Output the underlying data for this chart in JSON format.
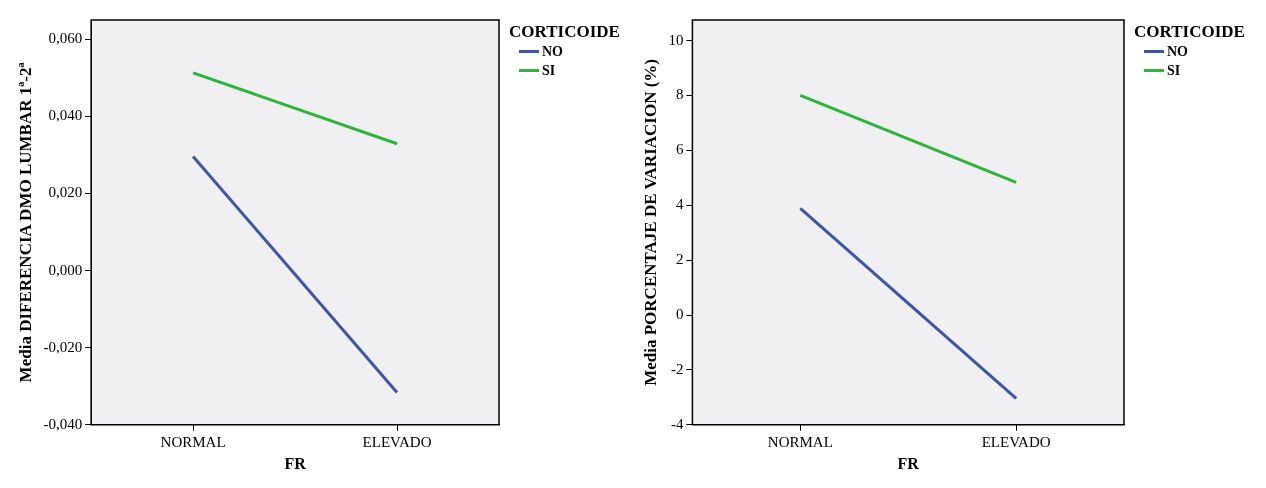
{
  "chart_data": [
    {
      "type": "line",
      "categories": [
        "NORMAL",
        "ELEVADO"
      ],
      "xlabel": "FR",
      "ylabel": "Media DIFERENCIA DMO LUMBAR 1ª-2ª",
      "legend_title": "CORTICOIDE",
      "legend": "right",
      "grid": false,
      "marker": "none",
      "line_style": "solid",
      "ylim": [
        -0.04,
        0.065
      ],
      "yticks": [
        {
          "value": -0.04,
          "label": "-0,040"
        },
        {
          "value": -0.02,
          "label": "-0,020"
        },
        {
          "value": 0,
          "label": "0,000"
        },
        {
          "value": 0.02,
          "label": "0,020"
        },
        {
          "value": 0.04,
          "label": "0,040"
        },
        {
          "value": 0.06,
          "label": "0,060"
        }
      ],
      "series": [
        {
          "name": "NO",
          "color": "#3e54a8",
          "values": [
            0.0296,
            -0.0316
          ]
        },
        {
          "name": "SI",
          "color": "#2eb43c",
          "values": [
            0.0513,
            0.0329
          ]
        }
      ]
    },
    {
      "type": "line",
      "categories": [
        "NORMAL",
        "ELEVADO"
      ],
      "xlabel": "FR",
      "ylabel": "Media PORCENTAJE DE VARIACION (%)",
      "legend_title": "CORTICOIDE",
      "legend": "right",
      "grid": false,
      "marker": "none",
      "line_style": "solid",
      "ylim": [
        -4,
        10.75
      ],
      "yticks": [
        -4,
        -2,
        0,
        2,
        4,
        6,
        8,
        10
      ],
      "series": [
        {
          "name": "NO",
          "color": "#3e54a8",
          "values": [
            3.89,
            -3.04
          ]
        },
        {
          "name": "SI",
          "color": "#2eb43c",
          "values": [
            8.0,
            4.83
          ]
        }
      ]
    }
  ]
}
